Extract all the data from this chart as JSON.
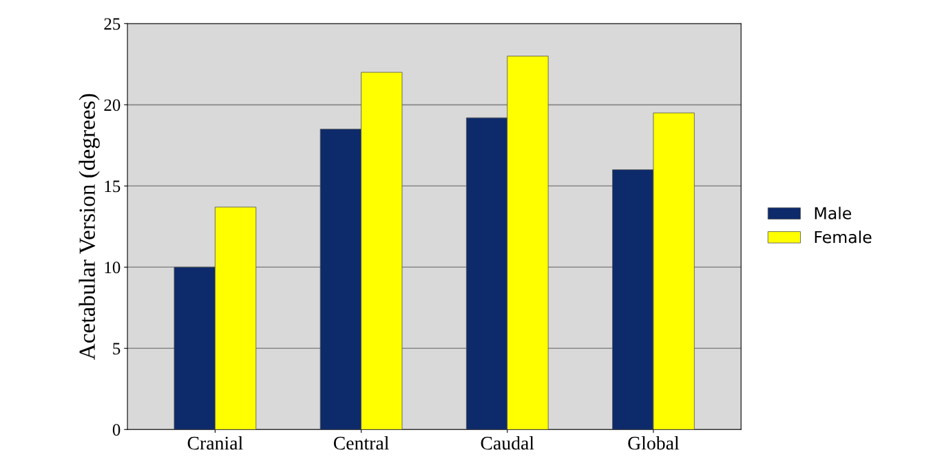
{
  "chart_data": {
    "type": "bar",
    "ylabel": "Acetabular Version (degrees)",
    "categories": [
      "Cranial",
      "Central",
      "Caudal",
      "Global"
    ],
    "series": [
      {
        "name": "Male",
        "color": "#0d2a6b",
        "values": [
          10,
          18.5,
          19.2,
          16
        ]
      },
      {
        "name": "Female",
        "color": "#ffff00",
        "values": [
          13.7,
          22,
          23,
          19.5
        ]
      }
    ],
    "ylim": [
      0,
      25
    ],
    "yticks": [
      0,
      5,
      10,
      15,
      20,
      25
    ],
    "grid": "y",
    "legend": "right"
  }
}
